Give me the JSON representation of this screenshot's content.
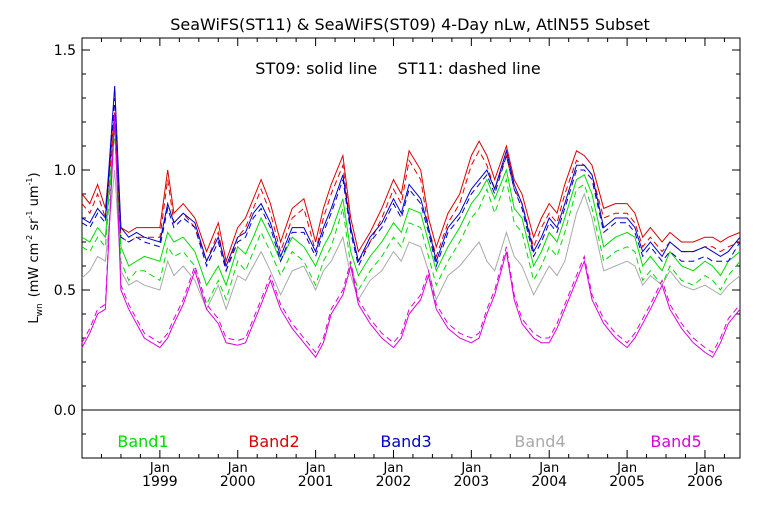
{
  "chart_data": {
    "type": "line",
    "title": "SeaWiFS(ST11) & SeaWiFS(ST09) 4-Day nLw, AtlN55 Subset",
    "annotation": "ST09: solid line    ST11: dashed line",
    "ylabel_main": "L",
    "ylabel_sub": "wn",
    "ylabel_units": "(mW cm",
    "ylabel_exp1": "-2",
    "ylabel_mid": " sr",
    "ylabel_exp2": "-1",
    "ylabel_um": " um",
    "ylabel_exp3": "-1",
    "ylabel_close": ")",
    "xlim": [
      1998.0,
      2006.45
    ],
    "ylim": [
      -0.2,
      1.55
    ],
    "y_ticks": [
      0.0,
      0.5,
      1.0,
      1.5
    ],
    "y_tick_labels": [
      "0.0",
      "0.5",
      "1.0",
      "1.5"
    ],
    "x_ticks": [
      1999,
      2000,
      2001,
      2002,
      2003,
      2004,
      2005,
      2006
    ],
    "x_tick_month_label": "Jan",
    "x_tick_year_labels": [
      "1999",
      "2000",
      "2001",
      "2002",
      "2003",
      "2004",
      "2005",
      "2006"
    ],
    "zero_line": 0.0,
    "grid": false,
    "legend_placement": "bottom",
    "line_styles": {
      "ST09": "solid",
      "ST11": "dashed"
    },
    "colors": {
      "Band1": "#00dd00",
      "Band2": "#dd0000",
      "Band3": "#0000cc",
      "Band4": "#aaaaaa",
      "Band5": "#dd00dd"
    },
    "x": [
      1998.0,
      1998.1,
      1998.2,
      1998.3,
      1998.42,
      1998.5,
      1998.6,
      1998.7,
      1998.8,
      1999.0,
      1999.1,
      1999.18,
      1999.3,
      1999.45,
      1999.6,
      1999.75,
      1999.85,
      2000.0,
      2000.1,
      2000.2,
      2000.3,
      2000.42,
      2000.55,
      2000.7,
      2000.85,
      2001.0,
      2001.1,
      2001.2,
      2001.35,
      2001.45,
      2001.55,
      2001.7,
      2001.85,
      2002.0,
      2002.1,
      2002.2,
      2002.35,
      2002.45,
      2002.55,
      2002.7,
      2002.85,
      2003.0,
      2003.1,
      2003.2,
      2003.3,
      2003.45,
      2003.55,
      2003.65,
      2003.8,
      2003.9,
      2004.0,
      2004.1,
      2004.2,
      2004.35,
      2004.45,
      2004.55,
      2004.7,
      2004.85,
      2005.0,
      2005.1,
      2005.2,
      2005.3,
      2005.45,
      2005.55,
      2005.7,
      2005.85,
      2006.0,
      2006.1,
      2006.2,
      2006.3,
      2006.45
    ],
    "series": [
      {
        "name": "Band1",
        "style": "solid",
        "values": [
          0.72,
          0.7,
          0.76,
          0.72,
          1.2,
          0.68,
          0.6,
          0.62,
          0.64,
          0.62,
          0.74,
          0.7,
          0.72,
          0.66,
          0.52,
          0.6,
          0.52,
          0.68,
          0.65,
          0.72,
          0.8,
          0.72,
          0.62,
          0.72,
          0.68,
          0.6,
          0.68,
          0.74,
          0.88,
          0.66,
          0.56,
          0.64,
          0.7,
          0.78,
          0.74,
          0.84,
          0.82,
          0.7,
          0.58,
          0.68,
          0.76,
          0.86,
          0.9,
          0.96,
          0.88,
          1.0,
          0.84,
          0.8,
          0.6,
          0.66,
          0.74,
          0.7,
          0.8,
          0.96,
          0.98,
          0.9,
          0.68,
          0.72,
          0.74,
          0.72,
          0.6,
          0.64,
          0.58,
          0.66,
          0.6,
          0.58,
          0.62,
          0.6,
          0.56,
          0.62,
          0.66
        ]
      },
      {
        "name": "Band1",
        "style": "dashed",
        "values": [
          0.68,
          0.66,
          0.72,
          0.68,
          1.16,
          0.62,
          0.54,
          0.58,
          0.58,
          0.54,
          0.68,
          0.64,
          0.66,
          0.6,
          0.44,
          0.54,
          0.46,
          0.62,
          0.58,
          0.66,
          0.74,
          0.66,
          0.56,
          0.66,
          0.62,
          0.52,
          0.62,
          0.68,
          0.84,
          0.6,
          0.5,
          0.58,
          0.64,
          0.72,
          0.68,
          0.78,
          0.76,
          0.64,
          0.52,
          0.62,
          0.7,
          0.8,
          0.84,
          0.92,
          0.82,
          0.96,
          0.78,
          0.74,
          0.54,
          0.6,
          0.68,
          0.64,
          0.74,
          0.92,
          0.94,
          0.84,
          0.62,
          0.66,
          0.68,
          0.66,
          0.54,
          0.58,
          0.52,
          0.6,
          0.54,
          0.52,
          0.56,
          0.54,
          0.5,
          0.56,
          0.62
        ]
      },
      {
        "name": "Band2",
        "style": "solid",
        "values": [
          0.9,
          0.86,
          0.94,
          0.84,
          1.24,
          0.76,
          0.74,
          0.76,
          0.76,
          0.76,
          1.0,
          0.82,
          0.86,
          0.8,
          0.66,
          0.78,
          0.62,
          0.76,
          0.8,
          0.88,
          0.96,
          0.86,
          0.7,
          0.84,
          0.88,
          0.7,
          0.84,
          0.94,
          1.06,
          0.8,
          0.66,
          0.74,
          0.84,
          0.96,
          0.9,
          1.08,
          1.0,
          0.8,
          0.68,
          0.82,
          0.9,
          1.06,
          1.12,
          1.06,
          0.96,
          1.1,
          0.96,
          0.9,
          0.72,
          0.8,
          0.86,
          0.82,
          0.94,
          1.08,
          1.06,
          1.02,
          0.84,
          0.86,
          0.86,
          0.82,
          0.72,
          0.76,
          0.7,
          0.74,
          0.7,
          0.7,
          0.72,
          0.72,
          0.7,
          0.72,
          0.74
        ]
      },
      {
        "name": "Band2",
        "style": "dashed",
        "values": [
          0.86,
          0.82,
          0.9,
          0.8,
          1.2,
          0.72,
          0.7,
          0.72,
          0.72,
          0.72,
          0.96,
          0.78,
          0.82,
          0.76,
          0.62,
          0.74,
          0.58,
          0.72,
          0.76,
          0.84,
          0.92,
          0.82,
          0.66,
          0.8,
          0.84,
          0.66,
          0.8,
          0.9,
          1.02,
          0.76,
          0.62,
          0.7,
          0.8,
          0.92,
          0.86,
          1.04,
          0.96,
          0.76,
          0.64,
          0.78,
          0.86,
          1.02,
          1.08,
          1.02,
          0.92,
          1.06,
          0.92,
          0.86,
          0.68,
          0.76,
          0.82,
          0.78,
          0.9,
          1.04,
          1.02,
          0.98,
          0.8,
          0.82,
          0.82,
          0.78,
          0.68,
          0.72,
          0.66,
          0.7,
          0.66,
          0.66,
          0.68,
          0.68,
          0.66,
          0.68,
          0.7
        ]
      },
      {
        "name": "Band3",
        "style": "solid",
        "values": [
          0.8,
          0.78,
          0.84,
          0.8,
          1.35,
          0.76,
          0.72,
          0.74,
          0.72,
          0.7,
          0.86,
          0.78,
          0.82,
          0.78,
          0.62,
          0.72,
          0.6,
          0.72,
          0.74,
          0.82,
          0.86,
          0.78,
          0.64,
          0.76,
          0.76,
          0.66,
          0.76,
          0.84,
          0.98,
          0.76,
          0.62,
          0.72,
          0.78,
          0.88,
          0.82,
          0.94,
          0.88,
          0.76,
          0.62,
          0.76,
          0.82,
          0.92,
          0.96,
          1.0,
          0.92,
          1.08,
          0.94,
          0.86,
          0.66,
          0.72,
          0.8,
          0.76,
          0.86,
          1.02,
          1.02,
          0.98,
          0.76,
          0.8,
          0.8,
          0.76,
          0.66,
          0.7,
          0.64,
          0.7,
          0.66,
          0.66,
          0.68,
          0.66,
          0.64,
          0.66,
          0.72
        ]
      },
      {
        "name": "Band3",
        "style": "dashed",
        "values": [
          0.78,
          0.76,
          0.82,
          0.78,
          1.3,
          0.72,
          0.7,
          0.72,
          0.7,
          0.68,
          0.84,
          0.76,
          0.8,
          0.76,
          0.6,
          0.7,
          0.58,
          0.7,
          0.72,
          0.8,
          0.84,
          0.76,
          0.62,
          0.74,
          0.74,
          0.64,
          0.74,
          0.82,
          0.96,
          0.74,
          0.6,
          0.7,
          0.76,
          0.86,
          0.8,
          0.92,
          0.86,
          0.74,
          0.6,
          0.74,
          0.8,
          0.9,
          0.94,
          0.98,
          0.9,
          1.06,
          0.92,
          0.84,
          0.64,
          0.7,
          0.78,
          0.74,
          0.84,
          1.0,
          1.0,
          0.96,
          0.74,
          0.78,
          0.78,
          0.74,
          0.64,
          0.68,
          0.62,
          0.66,
          0.62,
          0.62,
          0.64,
          0.62,
          0.62,
          0.62,
          0.7
        ]
      },
      {
        "name": "Band4",
        "style": "solid",
        "values": [
          0.55,
          0.58,
          0.64,
          0.62,
          1.0,
          0.58,
          0.52,
          0.54,
          0.52,
          0.5,
          0.62,
          0.56,
          0.6,
          0.54,
          0.42,
          0.52,
          0.42,
          0.56,
          0.54,
          0.6,
          0.66,
          0.58,
          0.48,
          0.58,
          0.6,
          0.5,
          0.58,
          0.62,
          0.72,
          0.56,
          0.46,
          0.54,
          0.58,
          0.66,
          0.62,
          0.7,
          0.68,
          0.58,
          0.46,
          0.56,
          0.6,
          0.66,
          0.7,
          0.62,
          0.58,
          0.74,
          0.64,
          0.6,
          0.48,
          0.54,
          0.6,
          0.56,
          0.62,
          0.82,
          0.9,
          0.8,
          0.58,
          0.6,
          0.62,
          0.6,
          0.52,
          0.56,
          0.52,
          0.58,
          0.52,
          0.5,
          0.52,
          0.5,
          0.48,
          0.52,
          0.56
        ]
      },
      {
        "name": "Band5",
        "style": "solid",
        "values": [
          0.26,
          0.32,
          0.4,
          0.42,
          1.22,
          0.5,
          0.42,
          0.36,
          0.3,
          0.26,
          0.3,
          0.36,
          0.44,
          0.58,
          0.42,
          0.36,
          0.28,
          0.27,
          0.28,
          0.36,
          0.44,
          0.54,
          0.42,
          0.34,
          0.28,
          0.22,
          0.28,
          0.4,
          0.48,
          0.6,
          0.44,
          0.36,
          0.3,
          0.26,
          0.3,
          0.4,
          0.46,
          0.56,
          0.42,
          0.34,
          0.3,
          0.28,
          0.3,
          0.4,
          0.48,
          0.66,
          0.46,
          0.36,
          0.3,
          0.28,
          0.28,
          0.34,
          0.42,
          0.54,
          0.62,
          0.46,
          0.36,
          0.3,
          0.26,
          0.3,
          0.36,
          0.42,
          0.52,
          0.42,
          0.34,
          0.28,
          0.24,
          0.22,
          0.28,
          0.36,
          0.42
        ]
      },
      {
        "name": "Band5",
        "style": "dashed",
        "values": [
          0.28,
          0.34,
          0.42,
          0.44,
          1.24,
          0.52,
          0.44,
          0.38,
          0.32,
          0.28,
          0.32,
          0.38,
          0.46,
          0.6,
          0.44,
          0.38,
          0.3,
          0.29,
          0.3,
          0.38,
          0.46,
          0.56,
          0.44,
          0.36,
          0.3,
          0.24,
          0.3,
          0.42,
          0.5,
          0.62,
          0.46,
          0.38,
          0.32,
          0.28,
          0.32,
          0.42,
          0.48,
          0.58,
          0.44,
          0.36,
          0.32,
          0.3,
          0.32,
          0.42,
          0.5,
          0.68,
          0.48,
          0.38,
          0.32,
          0.3,
          0.3,
          0.36,
          0.44,
          0.56,
          0.64,
          0.48,
          0.38,
          0.32,
          0.28,
          0.32,
          0.38,
          0.44,
          0.54,
          0.44,
          0.36,
          0.3,
          0.26,
          0.24,
          0.3,
          0.38,
          0.44
        ]
      }
    ],
    "legend": [
      "Band1",
      "Band2",
      "Band3",
      "Band4",
      "Band5"
    ]
  }
}
